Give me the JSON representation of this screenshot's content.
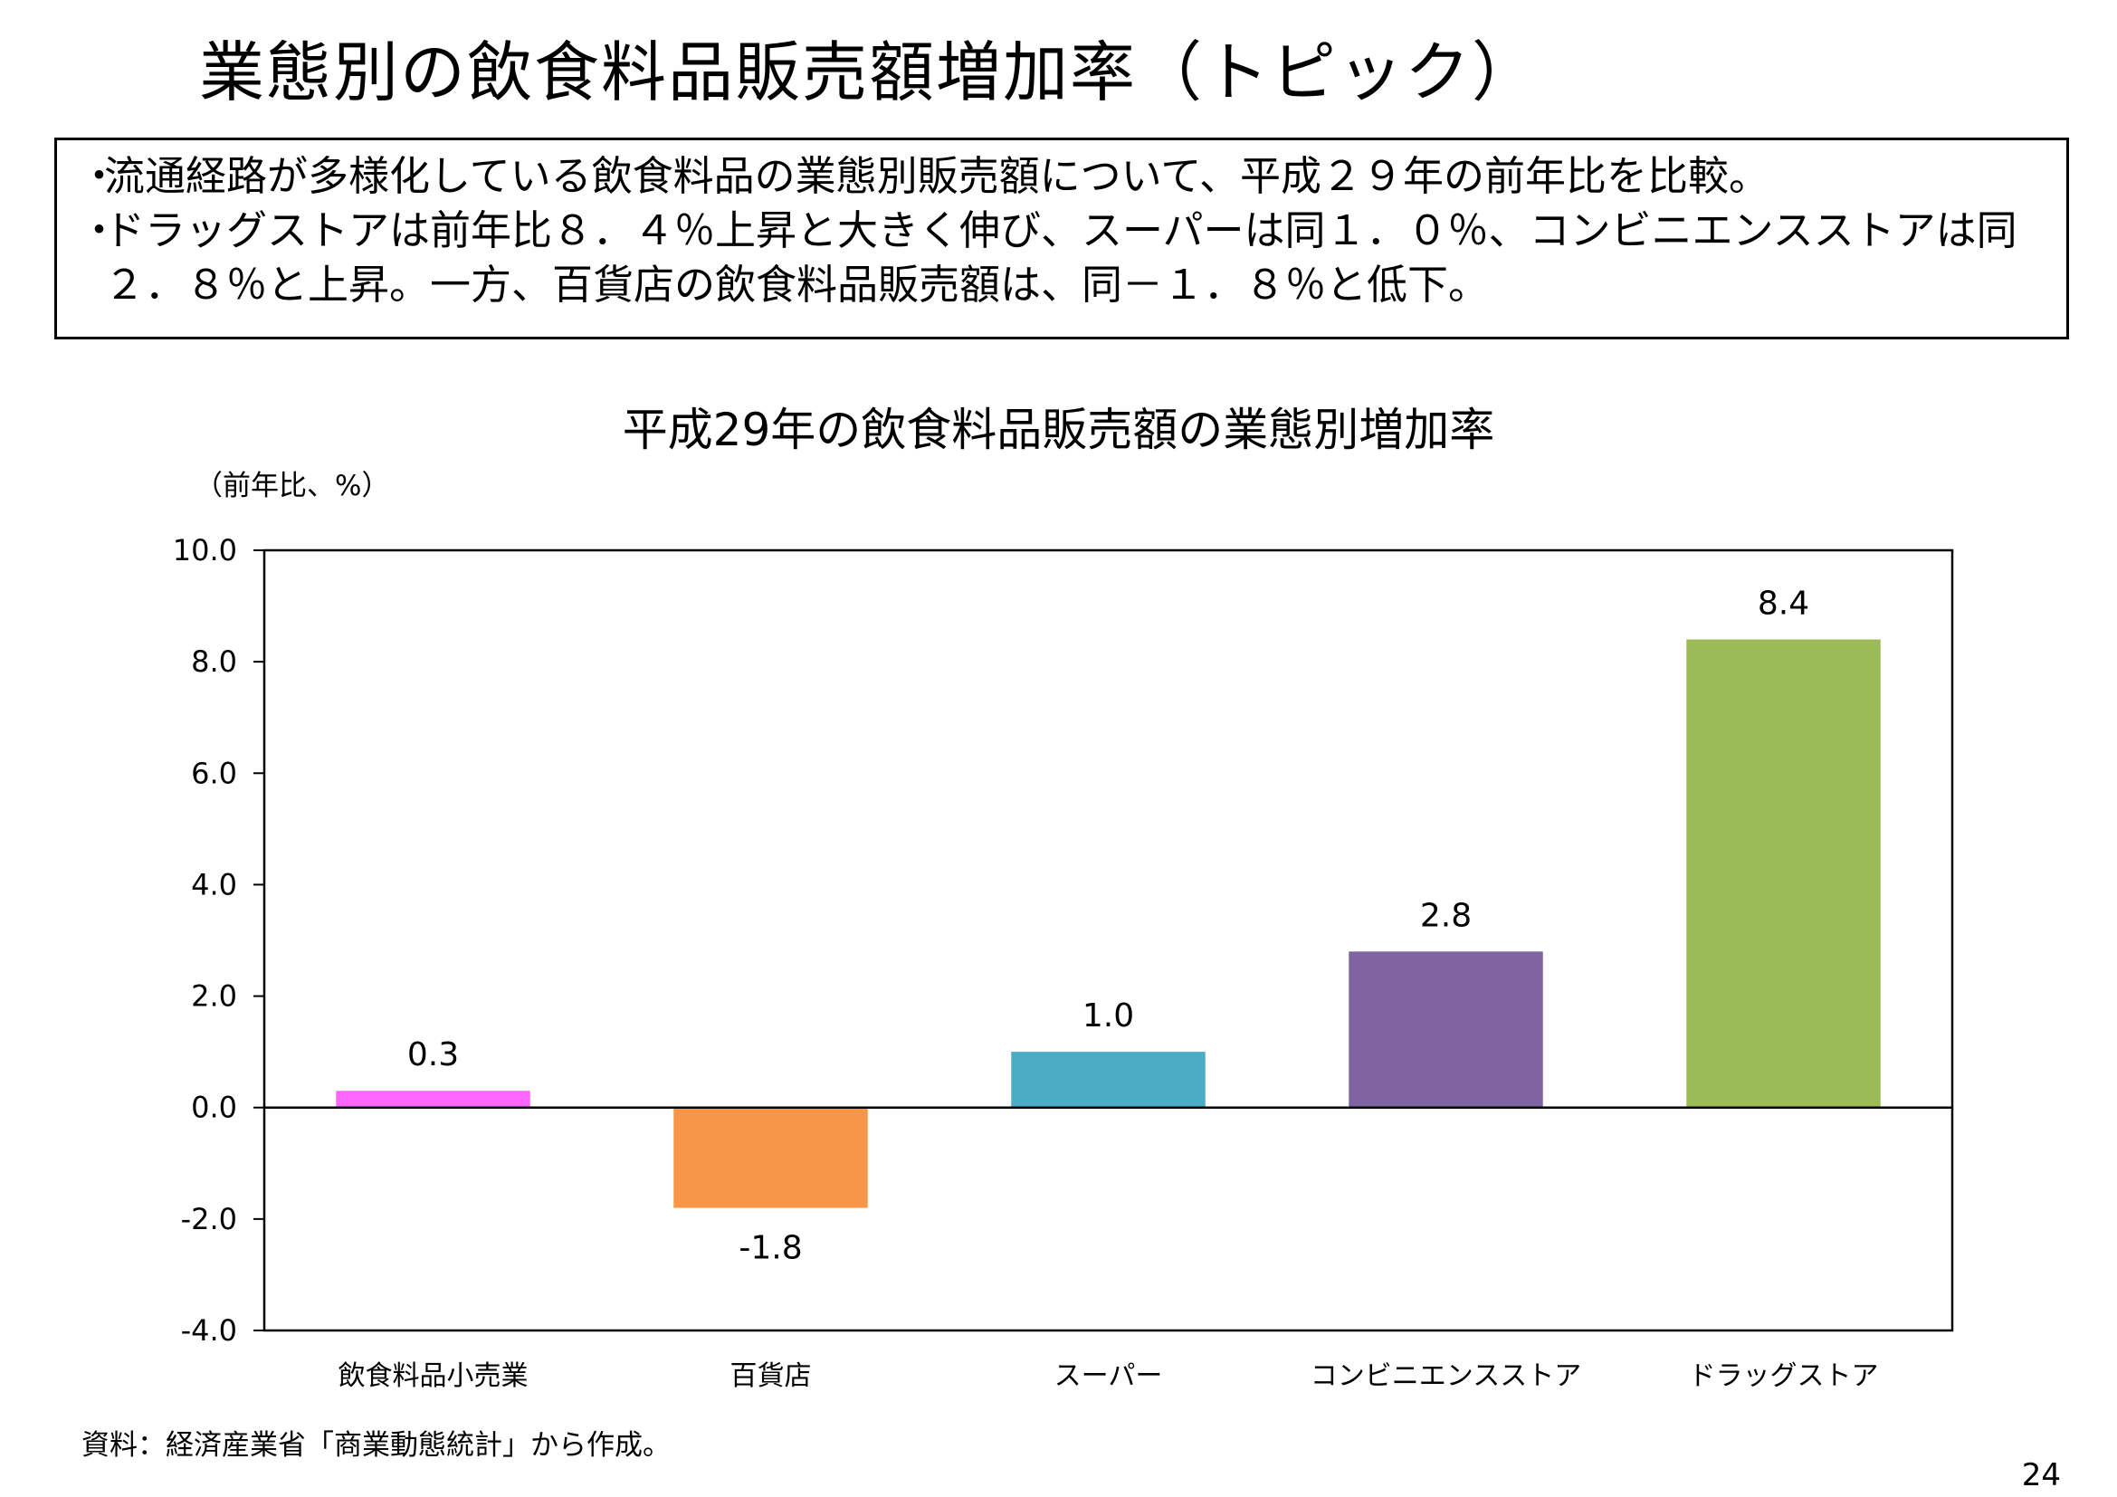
{
  "page": {
    "title": "業態別の飲食料品販売額増加率（トピック）",
    "bullets": [
      "流通経路が多様化している飲食料品の業態別販売額について、平成２９年の前年比を比較。",
      "ドラッグストアは前年比８．４％上昇と大きく伸び、スーパーは同１．０％、コンビニエンスストアは同２．８％と上昇。一方、百貨店の飲食料品販売額は、同－１．８％と低下。"
    ],
    "bullet_marker": "・",
    "source": "資料：経済産業省「商業動態統計」から作成。",
    "page_number": "24"
  },
  "chart_data": {
    "type": "bar",
    "title": "平成29年の飲食料品販売額の業態別増加率",
    "unit_label": "（前年比、%）",
    "xlabel": "",
    "ylabel": "",
    "ylim": [
      -4.0,
      10.0
    ],
    "yticks": [
      -4.0,
      -2.0,
      0.0,
      2.0,
      4.0,
      6.0,
      8.0,
      10.0
    ],
    "grid": false,
    "categories": [
      "飲食料品小売業",
      "百貨店",
      "スーパー",
      "コンビニエンスストア",
      "ドラッグストア"
    ],
    "values": [
      0.3,
      -1.8,
      1.0,
      2.8,
      8.4
    ],
    "data_labels": [
      "0.3",
      "-1.8",
      "1.0",
      "2.8",
      "8.4"
    ],
    "colors": [
      "#FF66FF",
      "#F79646",
      "#4BACC6",
      "#8064A2",
      "#9BBB59"
    ]
  }
}
